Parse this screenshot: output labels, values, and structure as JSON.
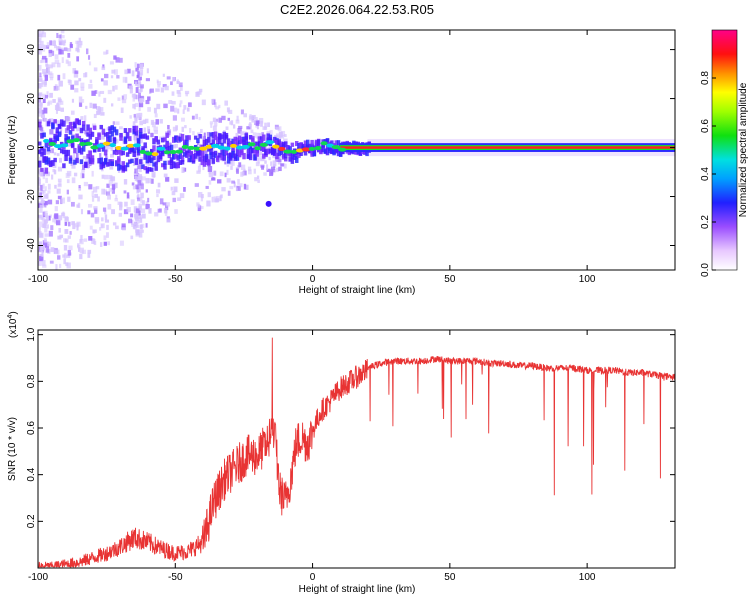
{
  "title": "C2E2.2026.064.22.53.R05",
  "chart_data": [
    {
      "type": "heatmap",
      "xlabel": "Height of straight line (km)",
      "ylabel": "Frequency (Hz)",
      "xlim": [
        -100,
        132
      ],
      "ylim": [
        -50,
        48
      ],
      "xticks": [
        -100,
        -50,
        0,
        50,
        100
      ],
      "yticks": [
        -40,
        -20,
        0,
        20,
        40
      ],
      "colorbar": {
        "label": "Normalized spectral amplitude",
        "range": [
          0.0,
          1.0
        ],
        "ticks": [
          0.0,
          0.2,
          0.4,
          0.6,
          0.8
        ]
      },
      "ridge": [
        {
          "x": -97,
          "y": 2
        },
        {
          "x": -90,
          "y": 1
        },
        {
          "x": -85,
          "y": 3
        },
        {
          "x": -80,
          "y": 0
        },
        {
          "x": -75,
          "y": 1
        },
        {
          "x": -70,
          "y": -1
        },
        {
          "x": -65,
          "y": 2
        },
        {
          "x": -60,
          "y": -3
        },
        {
          "x": -55,
          "y": -1
        },
        {
          "x": -50,
          "y": -2
        },
        {
          "x": -45,
          "y": 0
        },
        {
          "x": -40,
          "y": -1
        },
        {
          "x": -35,
          "y": 1
        },
        {
          "x": -30,
          "y": 0
        },
        {
          "x": -25,
          "y": 1
        },
        {
          "x": -20,
          "y": 0
        },
        {
          "x": -15,
          "y": 2
        },
        {
          "x": -12,
          "y": -1
        },
        {
          "x": -8,
          "y": -2
        },
        {
          "x": -4,
          "y": 0
        },
        {
          "x": 0,
          "y": 0
        },
        {
          "x": 5,
          "y": 1
        },
        {
          "x": 10,
          "y": 0
        },
        {
          "x": 20,
          "y": 0
        },
        {
          "x": 50,
          "y": 0
        },
        {
          "x": 100,
          "y": 0
        },
        {
          "x": 132,
          "y": 0
        }
      ]
    },
    {
      "type": "line",
      "xlabel": "Height of straight line (km)",
      "ylabel": "SNR (10 * v/v)",
      "yscale_label": "(x10",
      "yscale_exp": "4",
      "yscale_close": ")",
      "xlim": [
        -100,
        132
      ],
      "ylim": [
        0,
        1.02
      ],
      "xticks": [
        -100,
        -50,
        0,
        50,
        100
      ],
      "yticks": [
        0.2,
        0.4,
        0.6,
        0.8,
        1.0
      ],
      "color": "#e83333",
      "series": [
        {
          "x": [
            -100,
            -95,
            -90,
            -85,
            -80,
            -75,
            -70,
            -65,
            -60,
            -55,
            -50,
            -45,
            -40,
            -36,
            -32,
            -28,
            -24,
            -20,
            -17,
            -14,
            -12,
            -10,
            -8,
            -6,
            -4,
            -2,
            0,
            3,
            6,
            10,
            15,
            20,
            25,
            30,
            35,
            40,
            45,
            50,
            55,
            60,
            65,
            70,
            75,
            80,
            85,
            90,
            95,
            100,
            105,
            110,
            115,
            120,
            125,
            132
          ],
          "values": [
            0.01,
            0.01,
            0.02,
            0.03,
            0.05,
            0.07,
            0.1,
            0.14,
            0.12,
            0.09,
            0.07,
            0.08,
            0.12,
            0.3,
            0.4,
            0.45,
            0.5,
            0.5,
            0.55,
            0.62,
            0.35,
            0.3,
            0.4,
            0.55,
            0.58,
            0.55,
            0.6,
            0.68,
            0.72,
            0.78,
            0.82,
            0.86,
            0.88,
            0.89,
            0.89,
            0.89,
            0.9,
            0.89,
            0.89,
            0.89,
            0.88,
            0.88,
            0.87,
            0.87,
            0.86,
            0.86,
            0.86,
            0.85,
            0.85,
            0.85,
            0.84,
            0.84,
            0.83,
            0.82
          ]
        }
      ]
    }
  ]
}
